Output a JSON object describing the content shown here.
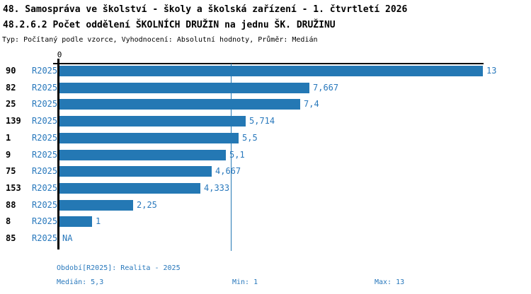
{
  "header": {
    "line1": "48. Samospráva ve školství - školy a školská zařízení - 1. čtvrtletí 2026",
    "line2": "48.2.6.2 Počet oddělení ŠKOLNÍCH DRUŽIN na jednu ŠK. DRUŽINU",
    "line3": "Typ: Počítaný podle vzorce, Vyhodnocení: Absolutní hodnoty, Průměr: Medián"
  },
  "colors": {
    "accent": "#2478B4",
    "blue_text": "#2878BC",
    "axis": "#000000"
  },
  "chart_data": {
    "type": "bar",
    "orientation": "horizontal",
    "title": "48.2.6.2 Počet oddělení ŠKOLNÍCH DRUŽIN na jednu ŠK. DRUŽINU",
    "xlabel": "",
    "ylabel": "",
    "xlim": [
      0,
      13
    ],
    "x_axis": {
      "zero_label": "0"
    },
    "grid": "median-line-only",
    "median_line_value": 5.3,
    "series_name": "R2025",
    "rows": [
      {
        "category": "90",
        "series": "R2025",
        "value": 13,
        "label": "13"
      },
      {
        "category": "82",
        "series": "R2025",
        "value": 7.667,
        "label": "7,667"
      },
      {
        "category": "25",
        "series": "R2025",
        "value": 7.4,
        "label": "7,4"
      },
      {
        "category": "139",
        "series": "R2025",
        "value": 5.714,
        "label": "5,714"
      },
      {
        "category": "1",
        "series": "R2025",
        "value": 5.5,
        "label": "5,5"
      },
      {
        "category": "9",
        "series": "R2025",
        "value": 5.1,
        "label": "5,1"
      },
      {
        "category": "75",
        "series": "R2025",
        "value": 4.667,
        "label": "4,667"
      },
      {
        "category": "153",
        "series": "R2025",
        "value": 4.333,
        "label": "4,333"
      },
      {
        "category": "88",
        "series": "R2025",
        "value": 2.25,
        "label": "2,25"
      },
      {
        "category": "8",
        "series": "R2025",
        "value": 1,
        "label": "1"
      },
      {
        "category": "85",
        "series": "R2025",
        "value": null,
        "label": "NA"
      }
    ]
  },
  "footer": {
    "period": "Období[R2025]: Realita - 2025",
    "median": "Medián: 5,3",
    "min": "Min: 1",
    "max": "Max: 13"
  }
}
